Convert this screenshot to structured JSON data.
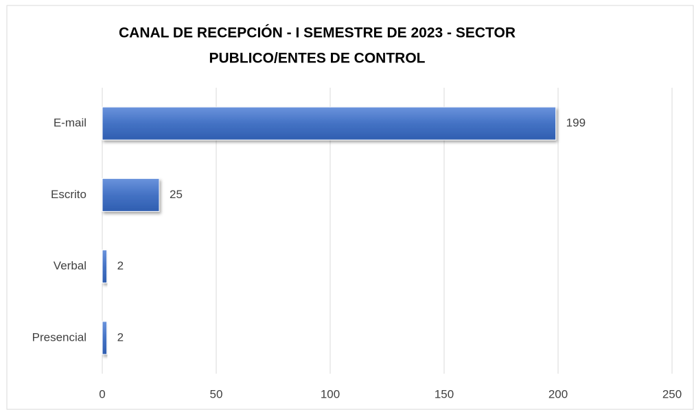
{
  "chart_data": {
    "type": "hbar",
    "title": [
      "CANAL DE RECEPCIÓN - I SEMESTRE DE 2023 - SECTOR",
      "PUBLICO/ENTES DE CONTROL"
    ],
    "categories": [
      "E-mail",
      "Escrito",
      "Verbal",
      "Presencial"
    ],
    "values": [
      199,
      25,
      2,
      2
    ],
    "color": "#4472c4",
    "xlim": [
      0,
      250
    ],
    "xticks": [
      0,
      50,
      100,
      150,
      200,
      250
    ],
    "grid": true
  }
}
